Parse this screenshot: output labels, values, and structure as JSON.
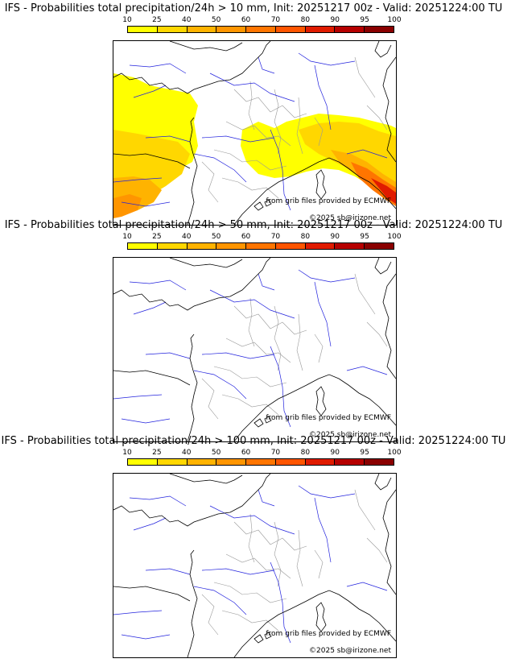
{
  "panels": [
    {
      "title": "IFS - Probabilities total precipitation/24h > 10 mm, Init: 20251217 00z - Valid: 20251224:00 TU",
      "has_field": true
    },
    {
      "title": "IFS - Probabilities total precipitation/24h > 50 mm, Init: 20251217 00z - Valid: 20251224:00 TU",
      "has_field": false
    },
    {
      "title": "IFS - Probabilities total precipitation/24h > 100 mm, Init: 20251217 00z - Valid: 20251224:00 TU",
      "has_field": false
    }
  ],
  "colorbar": {
    "ticks": [
      "10",
      "25",
      "40",
      "50",
      "60",
      "70",
      "80",
      "90",
      "95",
      "100"
    ],
    "colors": [
      "#ffff00",
      "#ffd700",
      "#ffb300",
      "#ff9500",
      "#ff7500",
      "#ff5500",
      "#e01b00",
      "#b60000",
      "#8a0000",
      "#5a0000"
    ]
  },
  "credits": {
    "data_source": "from grib files provided by ECMWF",
    "copyright": "©2025 sb@irizone.net"
  },
  "colors": {
    "coast": "#000000",
    "rivers": "#2222dd",
    "admin": "#999999"
  }
}
